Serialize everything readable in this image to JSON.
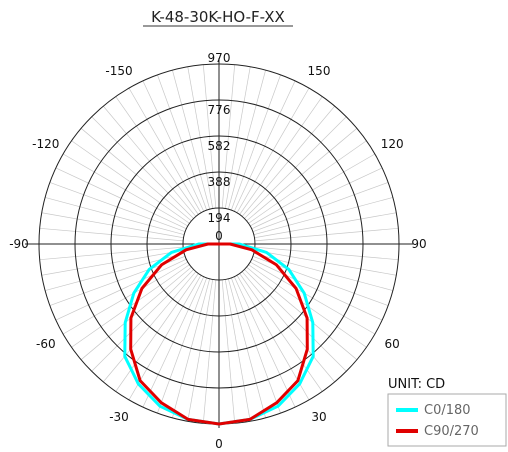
{
  "chart_data": {
    "type": "polar",
    "title": "K-48-30K-HO-F-XX",
    "unit_label": "UNIT: CD",
    "r_max": 970,
    "radial_ticks": [
      "0",
      "194",
      "388",
      "582",
      "776",
      "970"
    ],
    "angle_labels": [
      {
        "text": "0",
        "angle": 0
      },
      {
        "text": "30",
        "angle": 30
      },
      {
        "text": "60",
        "angle": 60
      },
      {
        "text": "90",
        "angle": 90
      },
      {
        "text": "120",
        "angle": 120
      },
      {
        "text": "150",
        "angle": 150
      },
      {
        "text": "-30",
        "angle": -30
      },
      {
        "text": "-60",
        "angle": -60
      },
      {
        "text": "-90",
        "angle": -90
      },
      {
        "text": "-120",
        "angle": -120
      },
      {
        "text": "-150",
        "angle": -150
      }
    ],
    "series": [
      {
        "name": "C0/180",
        "color": "#00ffff",
        "angles": [
          0,
          10,
          20,
          30,
          40,
          50,
          60,
          70,
          80,
          90
        ],
        "values": [
          970,
          960,
          930,
          870,
          790,
          660,
          530,
          400,
          260,
          110
        ]
      },
      {
        "name": "C90/270",
        "color": "#e00000",
        "angles": [
          0,
          10,
          20,
          30,
          40,
          50,
          60,
          70,
          80,
          90
        ],
        "values": [
          970,
          960,
          910,
          850,
          740,
          620,
          480,
          330,
          180,
          60
        ]
      }
    ]
  }
}
